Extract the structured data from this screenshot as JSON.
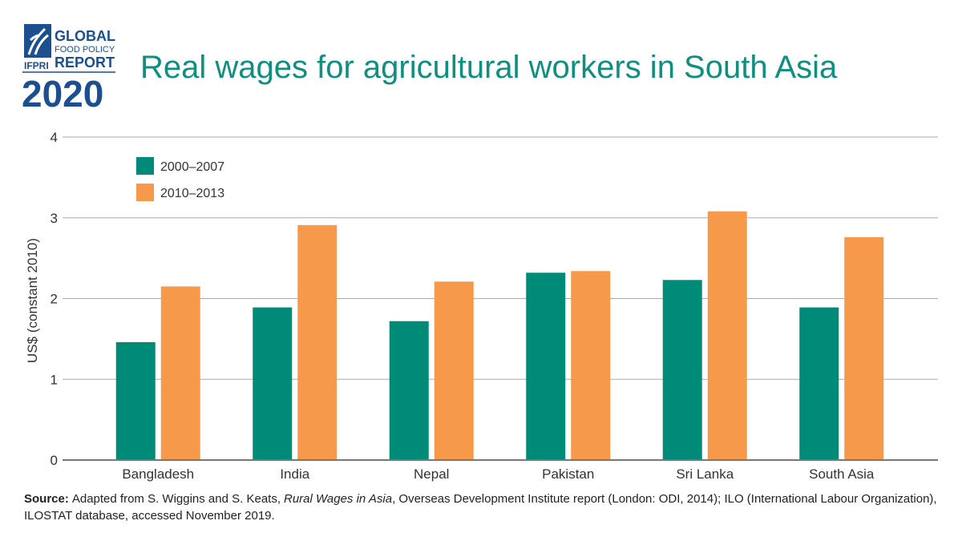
{
  "logo": {
    "line_1": "GLOBAL",
    "line_2": "FOOD POLICY",
    "line_3": "REPORT",
    "org": "IFPRI",
    "year": "2020"
  },
  "chart_data": {
    "type": "bar",
    "title": "Real wages for agricultural workers in South Asia",
    "y_label": "US$ (constant 2010)",
    "categories": [
      "Bangladesh",
      "India",
      "Nepal",
      "Pakistan",
      "Sri Lanka",
      "South Asia"
    ],
    "series": [
      {
        "name": "2000–2007",
        "color": "#008b78",
        "values": [
          1.46,
          1.89,
          1.72,
          2.32,
          2.23,
          1.89
        ]
      },
      {
        "name": "2010–2013",
        "color": "#f7994b",
        "values": [
          2.15,
          2.91,
          2.21,
          2.34,
          3.08,
          2.76
        ]
      }
    ],
    "ylim": [
      0,
      4
    ],
    "yticks": [
      0,
      1,
      2,
      3,
      4
    ],
    "grid": true,
    "legend": "top-left"
  },
  "source": {
    "label": "Source:",
    "text_1": "Adapted from S. Wiggins and S. Keats,",
    "title": "Rural Wages in Asia",
    "text_2": ", Overseas Development Institute report (London: ODI, 2014); ILO (International Labour Organization),",
    "text_3": "ILOSTAT database, accessed November 2019."
  }
}
